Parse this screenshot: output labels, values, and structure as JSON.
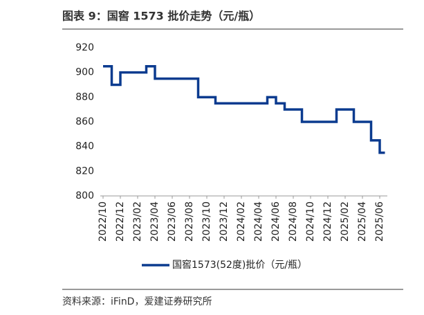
{
  "chart_data": {
    "type": "step-line",
    "title": "图表 9：国窖 1573 批价走势（元/瓶）",
    "source": "资料来源：iFinD，爱建证券研究所",
    "x": [
      "2022/10",
      "2022/11",
      "2022/12",
      "2023/03",
      "2023/04",
      "2023/09",
      "2023/11",
      "2024/05",
      "2024/06",
      "2024/07",
      "2024/09",
      "2025/01",
      "2025/03",
      "2025/05",
      "2025/06"
    ],
    "series": [
      {
        "name": "国窖1573(52度)批价（元/瓶）",
        "color": "#0b3b8f",
        "values": [
          905,
          890,
          900,
          905,
          895,
          880,
          875,
          880,
          875,
          870,
          860,
          870,
          860,
          845,
          835
        ]
      }
    ],
    "ylim": [
      800,
      920
    ],
    "yticks": [
      800,
      820,
      840,
      860,
      880,
      900,
      920
    ],
    "xticks": [
      "2022/10",
      "2022/12",
      "2023/02",
      "2023/04",
      "2023/06",
      "2023/08",
      "2023/10",
      "2023/12",
      "2024/02",
      "2024/04",
      "2024/06",
      "2024/08",
      "2024/10",
      "2024/12",
      "2025/02",
      "2025/04",
      "2025/06"
    ],
    "legend": "bottom"
  }
}
